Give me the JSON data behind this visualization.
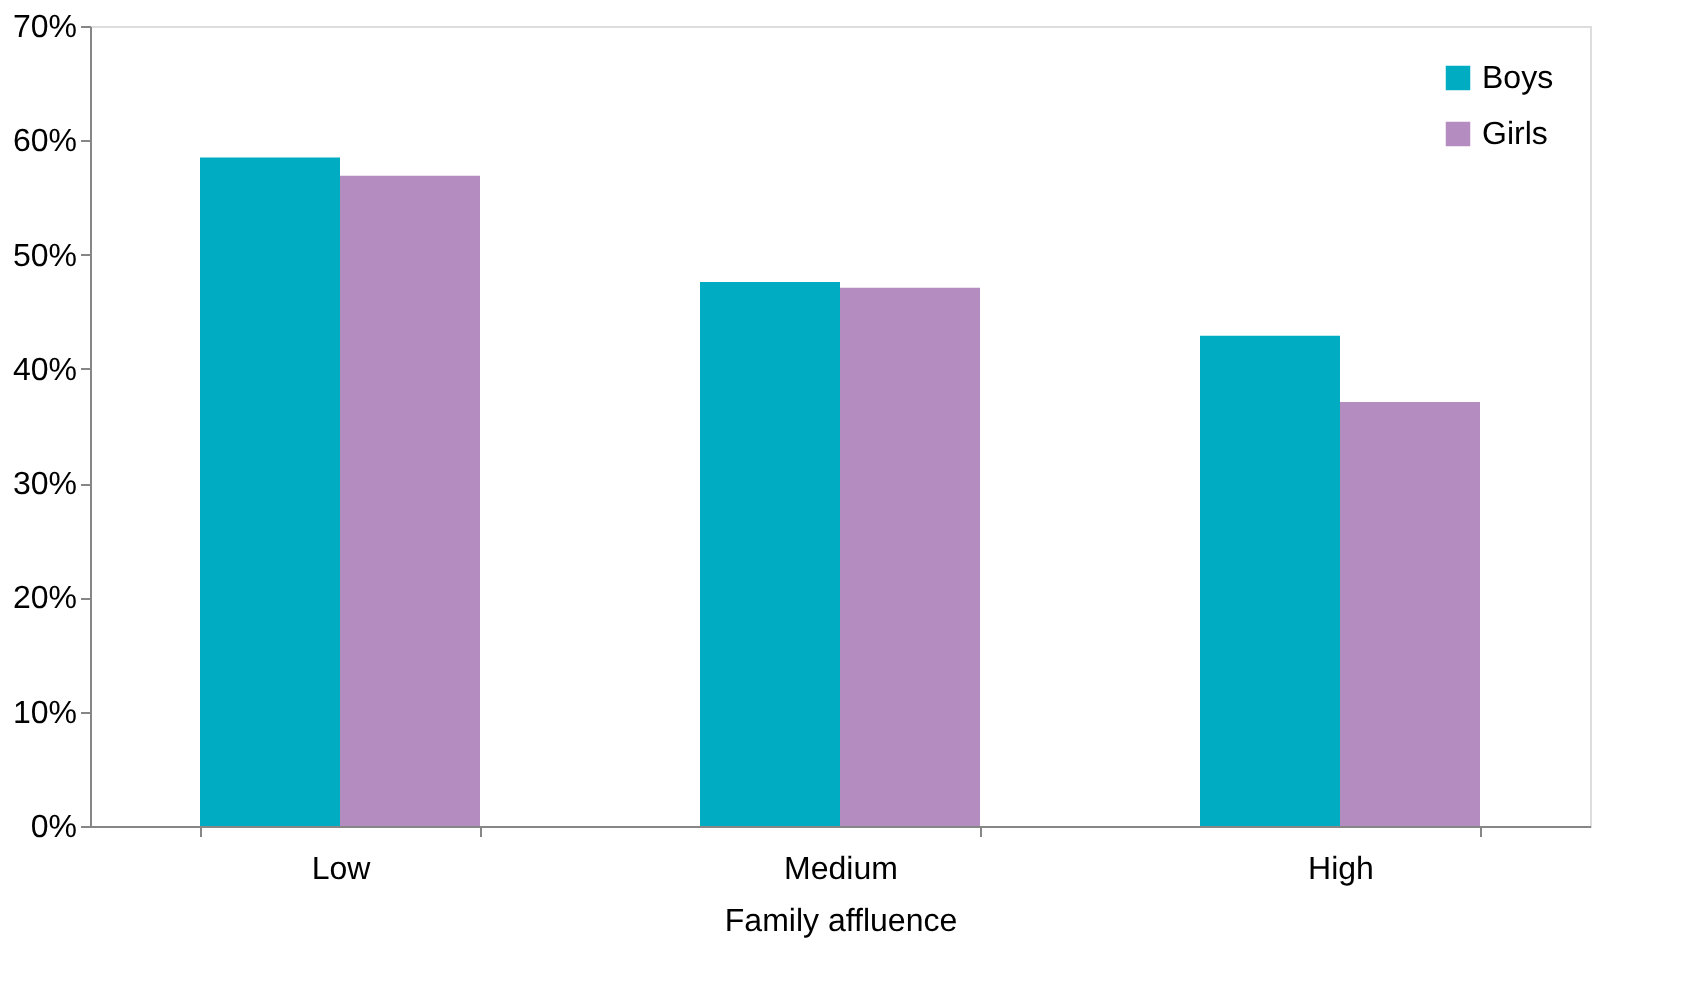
{
  "chart_data": {
    "type": "bar",
    "xlabel": "Family affluence",
    "categories": [
      "Low",
      "Medium",
      "High"
    ],
    "series": [
      {
        "name": "Boys",
        "color": "#00acc1",
        "values": [
          58.5,
          47.6,
          42.9
        ]
      },
      {
        "name": "Girls",
        "color": "#b48cc0",
        "values": [
          56.9,
          47.1,
          37.1
        ]
      }
    ],
    "ylim": [
      0,
      70
    ],
    "yticks": [
      {
        "value": 0,
        "label": "0%"
      },
      {
        "value": 10,
        "label": "10%"
      },
      {
        "value": 20,
        "label": "20%"
      },
      {
        "value": 30,
        "label": "30%"
      },
      {
        "value": 40,
        "label": "40%"
      },
      {
        "value": 50,
        "label": "50%"
      },
      {
        "value": 60,
        "label": "60%"
      },
      {
        "value": 70,
        "label": "70%"
      }
    ],
    "grid": false,
    "legend": "top right"
  }
}
